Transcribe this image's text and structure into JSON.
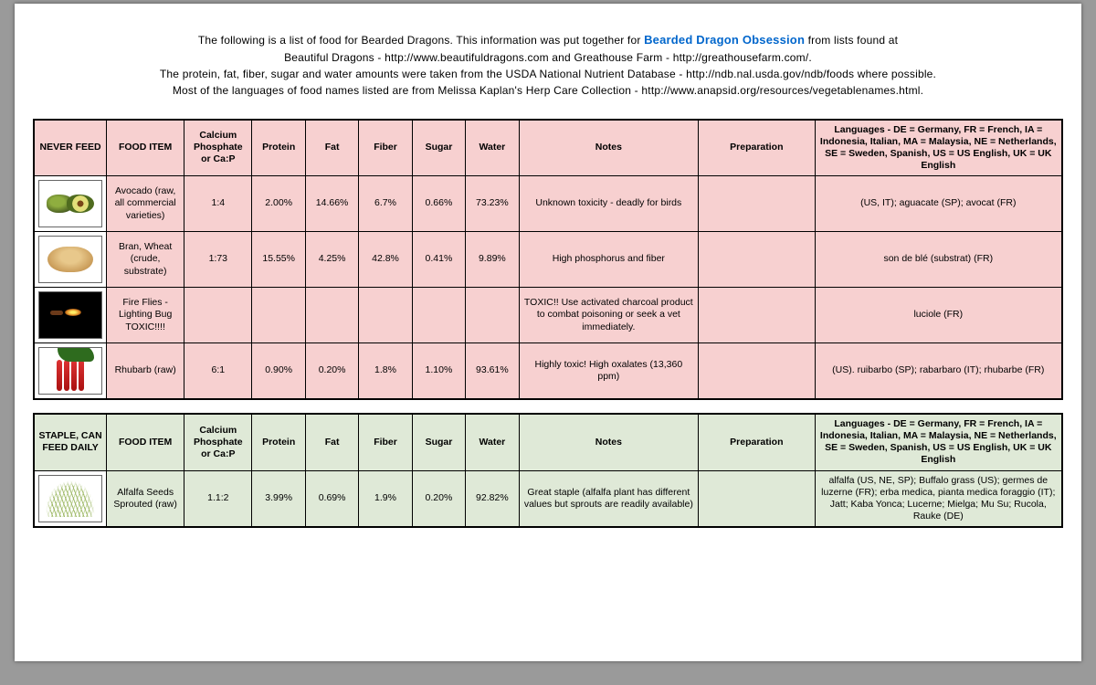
{
  "intro": {
    "line1_a": "The following is a list of food for Bearded Dragons. This information was put together for ",
    "brand": "Bearded Dragon Obsession",
    "line1_b": " from lists found at",
    "line2": "Beautiful Dragons - http://www.beautifuldragons.com and Greathouse Farm - http://greathousefarm.com/.",
    "line3": "The protein, fat, fiber, sugar and water amounts were taken from the USDA National Nutrient Database - http://ndb.nal.usda.gov/ndb/foods where possible.",
    "line4": "Most of the languages of food names listed are from Melissa Kaplan's Herp Care Collection - http://www.anapsid.org/resources/vegetablenames.html."
  },
  "headers": {
    "food_item": "FOOD ITEM",
    "cap": "Calcium Phosphate or Ca:P",
    "protein": "Protein",
    "fat": "Fat",
    "fiber": "Fiber",
    "sugar": "Sugar",
    "water": "Water",
    "notes": "Notes",
    "prep": "Preparation"
  },
  "lang_header_html": "<b>Languages</b> - <b>DE</b> = Germany, <b>FR</b> = French, <b>IA</b> = Indonesia, Italian, <b>MA</b> = Malaysia, <b>NE</b> = Netherlands, <b>SE</b> = Sweden, Spanish, <b>US</b> = US English, <b>UK</b> = UK English",
  "tables": [
    {
      "class": "never",
      "section": "NEVER FEED",
      "rows": [
        {
          "thumb": "avocado",
          "item": "Avocado (raw, all commercial varieties)",
          "cap": "1:4",
          "protein": "2.00%",
          "fat": "14.66%",
          "fiber": "6.7%",
          "sugar": "0.66%",
          "water": "73.23%",
          "notes": "Unknown toxicity - deadly for birds",
          "prep": "",
          "lang": "(US, IT);  aguacate (SP); avocat (FR)"
        },
        {
          "thumb": "bran",
          "item": "Bran, Wheat (crude, substrate)",
          "cap": "1:73",
          "protein": "15.55%",
          "fat": "4.25%",
          "fiber": "42.8%",
          "sugar": "0.41%",
          "water": "9.89%",
          "notes": "High phosphorus and fiber",
          "prep": "",
          "lang": "son de blé (substrat) (FR)"
        },
        {
          "thumb": "firefly",
          "item": "Fire Flies - Lighting Bug TOXIC!!!!",
          "cap": "",
          "protein": "",
          "fat": "",
          "fiber": "",
          "sugar": "",
          "water": "",
          "notes": "TOXIC!!  Use activated charcoal product to combat poisoning or seek a vet immediately.",
          "prep": "",
          "lang": "luciole (FR)"
        },
        {
          "thumb": "rhubarb",
          "item": "Rhubarb (raw)",
          "cap": "6:1",
          "protein": "0.90%",
          "fat": "0.20%",
          "fiber": "1.8%",
          "sugar": "1.10%",
          "water": "93.61%",
          "notes": "Highly toxic! High oxalates (13,360 ppm)",
          "prep": "",
          "lang": "(US). ruibarbo (SP); rabarbaro (IT); rhubarbe (FR)"
        }
      ]
    },
    {
      "class": "staple",
      "section": "STAPLE, CAN FEED DAILY",
      "rows": [
        {
          "thumb": "sprouts",
          "item": "Alfalfa Seeds Sprouted (raw)",
          "cap": "1.1:2",
          "protein": "3.99%",
          "fat": "0.69%",
          "fiber": "1.9%",
          "sugar": "0.20%",
          "water": "92.82%",
          "notes": "Great staple (alfalfa plant has different values but sprouts are readily available)",
          "prep": "",
          "lang": "alfalfa (US, NE, SP); Buffalo grass (US); germes de luzerne (FR); erba medica, pianta medica foraggio (IT); Jatt; Kaba Yonca; Lucerne; Mielga; Mu Su; Rucola, Rauke (DE)"
        }
      ]
    }
  ]
}
